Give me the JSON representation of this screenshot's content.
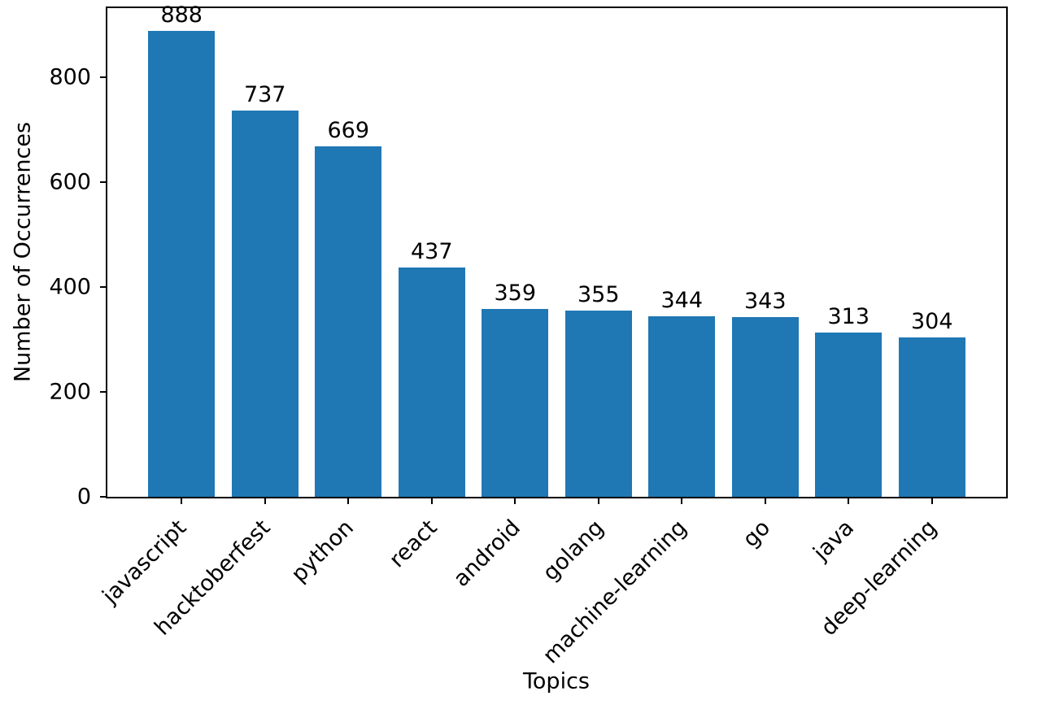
{
  "chart_data": {
    "type": "bar",
    "title": "",
    "xlabel": "Topics",
    "ylabel": "Number of Occurrences",
    "categories": [
      "javascript",
      "hacktoberfest",
      "python",
      "react",
      "android",
      "golang",
      "machine-learning",
      "go",
      "java",
      "deep-learning"
    ],
    "values": [
      888,
      737,
      669,
      437,
      359,
      355,
      344,
      343,
      313,
      304
    ],
    "yticks": [
      0,
      200,
      400,
      600,
      800
    ],
    "ylim": [
      0,
      932
    ],
    "bar_color": "#1f77b4",
    "x_tick_rotation_deg": 45,
    "value_labels_shown": true,
    "grid": false,
    "legend": null
  }
}
